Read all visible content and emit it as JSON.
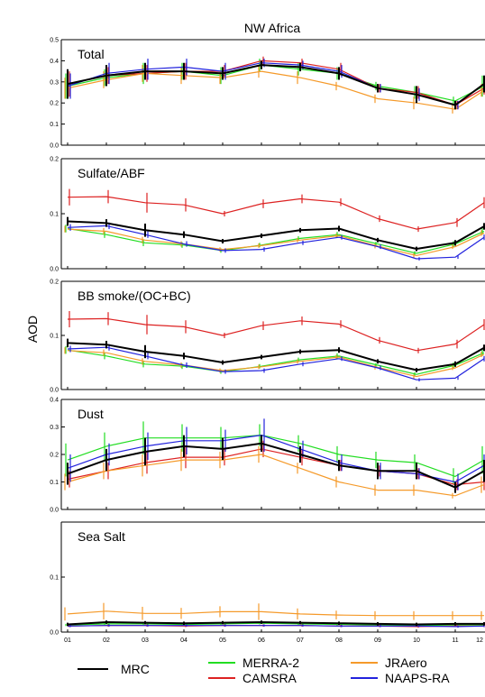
{
  "chart_data": {
    "type": "line",
    "title": "NW Africa",
    "ylabel": "AOD",
    "x": [
      "01",
      "02",
      "03",
      "04",
      "05",
      "06",
      "07",
      "08",
      "09",
      "10",
      "11",
      "12"
    ],
    "legend": [
      {
        "name": "MRC",
        "color": "#000000"
      },
      {
        "name": "MERRA-2",
        "color": "#22dd22"
      },
      {
        "name": "CAMSRA",
        "color": "#dd2222"
      },
      {
        "name": "JRAero",
        "color": "#f59a2a"
      },
      {
        "name": "NAAPS-RA",
        "color": "#2222dd"
      }
    ],
    "panels": [
      {
        "label": "Total",
        "ylim": [
          0,
          0.5
        ],
        "yticks": [
          0.0,
          0.1,
          0.2,
          0.3,
          0.4,
          0.5
        ],
        "series": [
          {
            "name": "MRC",
            "values": [
              0.29,
              0.33,
              0.35,
              0.35,
              0.34,
              0.38,
              0.37,
              0.34,
              0.27,
              0.24,
              0.19,
              0.29
            ],
            "errors": [
              0.07,
              0.05,
              0.04,
              0.04,
              0.03,
              0.02,
              0.02,
              0.03,
              0.02,
              0.04,
              0.02,
              0.04
            ]
          },
          {
            "name": "MERRA-2",
            "values": [
              0.28,
              0.32,
              0.34,
              0.35,
              0.33,
              0.38,
              0.36,
              0.34,
              0.28,
              0.25,
              0.21,
              0.28
            ],
            "errors": [
              0.06,
              0.04,
              0.05,
              0.04,
              0.04,
              0.03,
              0.03,
              0.03,
              0.02,
              0.03,
              0.02,
              0.05
            ]
          },
          {
            "name": "CAMSRA",
            "values": [
              0.29,
              0.33,
              0.34,
              0.35,
              0.35,
              0.4,
              0.39,
              0.36,
              0.27,
              0.25,
              0.19,
              0.27
            ],
            "errors": [
              0.06,
              0.04,
              0.04,
              0.04,
              0.03,
              0.02,
              0.02,
              0.03,
              0.02,
              0.03,
              0.02,
              0.03
            ]
          },
          {
            "name": "JRAero",
            "values": [
              0.27,
              0.31,
              0.34,
              0.33,
              0.32,
              0.35,
              0.32,
              0.28,
              0.22,
              0.2,
              0.17,
              0.26
            ],
            "errors": [
              0.05,
              0.04,
              0.04,
              0.04,
              0.03,
              0.03,
              0.03,
              0.02,
              0.02,
              0.03,
              0.02,
              0.03
            ]
          },
          {
            "name": "NAAPS-RA",
            "values": [
              0.28,
              0.34,
              0.36,
              0.37,
              0.35,
              0.39,
              0.38,
              0.35,
              0.27,
              0.24,
              0.19,
              0.29
            ],
            "errors": [
              0.06,
              0.05,
              0.05,
              0.04,
              0.04,
              0.02,
              0.02,
              0.03,
              0.02,
              0.03,
              0.02,
              0.04
            ]
          }
        ]
      },
      {
        "label": "Sulfate/ABF",
        "ylim": [
          0,
          0.2
        ],
        "yticks": [
          0.0,
          0.1,
          0.2
        ],
        "series": [
          {
            "name": "MRC",
            "values": [
              0.086,
              0.083,
              0.07,
              0.062,
              0.05,
              0.06,
              0.07,
              0.073,
              0.052,
              0.036,
              0.047,
              0.077
            ],
            "errors": [
              0.008,
              0.007,
              0.012,
              0.006,
              0.004,
              0.004,
              0.004,
              0.005,
              0.004,
              0.004,
              0.005,
              0.006
            ]
          },
          {
            "name": "MERRA-2",
            "values": [
              0.073,
              0.062,
              0.047,
              0.043,
              0.033,
              0.043,
              0.055,
              0.062,
              0.045,
              0.028,
              0.045,
              0.068
            ],
            "errors": [
              0.007,
              0.006,
              0.006,
              0.005,
              0.004,
              0.004,
              0.004,
              0.005,
              0.004,
              0.004,
              0.005,
              0.006
            ]
          },
          {
            "name": "CAMSRA",
            "values": [
              0.13,
              0.131,
              0.12,
              0.116,
              0.1,
              0.118,
              0.127,
              0.121,
              0.091,
              0.072,
              0.084,
              0.12
            ],
            "errors": [
              0.015,
              0.012,
              0.018,
              0.012,
              0.005,
              0.008,
              0.008,
              0.007,
              0.006,
              0.005,
              0.008,
              0.01
            ]
          },
          {
            "name": "JRAero",
            "values": [
              0.072,
              0.068,
              0.052,
              0.045,
              0.035,
              0.042,
              0.052,
              0.06,
              0.041,
              0.024,
              0.04,
              0.065
            ],
            "errors": [
              0.006,
              0.006,
              0.006,
              0.005,
              0.004,
              0.004,
              0.004,
              0.004,
              0.004,
              0.004,
              0.004,
              0.005
            ]
          },
          {
            "name": "NAAPS-RA",
            "values": [
              0.075,
              0.078,
              0.062,
              0.045,
              0.033,
              0.035,
              0.047,
              0.057,
              0.04,
              0.018,
              0.021,
              0.057
            ],
            "errors": [
              0.006,
              0.006,
              0.006,
              0.005,
              0.004,
              0.004,
              0.004,
              0.004,
              0.004,
              0.003,
              0.003,
              0.005
            ]
          }
        ]
      },
      {
        "label": "BB smoke/(OC+BC)",
        "ylim": [
          0,
          0.2
        ],
        "yticks": [
          0.0,
          0.1,
          0.2
        ],
        "series": [
          {
            "name": "MRC",
            "values": [
              0.086,
              0.083,
              0.07,
              0.062,
              0.05,
              0.06,
              0.07,
              0.073,
              0.052,
              0.036,
              0.047,
              0.077
            ],
            "errors": [
              0.008,
              0.007,
              0.012,
              0.006,
              0.004,
              0.004,
              0.004,
              0.005,
              0.004,
              0.004,
              0.005,
              0.006
            ]
          },
          {
            "name": "MERRA-2",
            "values": [
              0.073,
              0.062,
              0.047,
              0.043,
              0.033,
              0.043,
              0.055,
              0.062,
              0.045,
              0.028,
              0.045,
              0.068
            ],
            "errors": [
              0.007,
              0.006,
              0.006,
              0.005,
              0.004,
              0.004,
              0.004,
              0.005,
              0.004,
              0.004,
              0.005,
              0.006
            ]
          },
          {
            "name": "CAMSRA",
            "values": [
              0.13,
              0.131,
              0.12,
              0.116,
              0.1,
              0.118,
              0.127,
              0.121,
              0.091,
              0.072,
              0.084,
              0.12
            ],
            "errors": [
              0.015,
              0.012,
              0.018,
              0.012,
              0.005,
              0.008,
              0.008,
              0.007,
              0.006,
              0.005,
              0.008,
              0.01
            ]
          },
          {
            "name": "JRAero",
            "values": [
              0.072,
              0.068,
              0.052,
              0.045,
              0.035,
              0.042,
              0.052,
              0.06,
              0.041,
              0.024,
              0.04,
              0.065
            ],
            "errors": [
              0.006,
              0.006,
              0.006,
              0.005,
              0.004,
              0.004,
              0.004,
              0.004,
              0.004,
              0.004,
              0.004,
              0.005
            ]
          },
          {
            "name": "NAAPS-RA",
            "values": [
              0.075,
              0.078,
              0.062,
              0.045,
              0.033,
              0.035,
              0.047,
              0.057,
              0.04,
              0.018,
              0.021,
              0.057
            ],
            "errors": [
              0.006,
              0.006,
              0.006,
              0.005,
              0.004,
              0.004,
              0.004,
              0.004,
              0.004,
              0.003,
              0.003,
              0.005
            ]
          }
        ]
      },
      {
        "label": "Dust",
        "ylim": [
          0,
          0.4
        ],
        "yticks": [
          0.0,
          0.1,
          0.2,
          0.3,
          0.4
        ],
        "series": [
          {
            "name": "MRC",
            "values": [
              0.13,
              0.18,
              0.21,
              0.23,
              0.22,
              0.24,
              0.2,
              0.16,
              0.14,
              0.14,
              0.08,
              0.14
            ],
            "errors": [
              0.04,
              0.04,
              0.05,
              0.04,
              0.04,
              0.03,
              0.03,
              0.02,
              0.03,
              0.03,
              0.02,
              0.04
            ]
          },
          {
            "name": "MERRA-2",
            "values": [
              0.18,
              0.23,
              0.26,
              0.26,
              0.26,
              0.27,
              0.24,
              0.2,
              0.18,
              0.17,
              0.12,
              0.18
            ],
            "errors": [
              0.06,
              0.05,
              0.06,
              0.05,
              0.04,
              0.04,
              0.03,
              0.03,
              0.03,
              0.03,
              0.03,
              0.05
            ]
          },
          {
            "name": "CAMSRA",
            "values": [
              0.11,
              0.14,
              0.17,
              0.19,
              0.19,
              0.22,
              0.19,
              0.16,
              0.14,
              0.13,
              0.09,
              0.1
            ],
            "errors": [
              0.03,
              0.03,
              0.04,
              0.04,
              0.03,
              0.03,
              0.03,
              0.02,
              0.02,
              0.02,
              0.02,
              0.03
            ]
          },
          {
            "name": "JRAero",
            "values": [
              0.1,
              0.14,
              0.16,
              0.18,
              0.18,
              0.2,
              0.15,
              0.1,
              0.07,
              0.07,
              0.05,
              0.09
            ],
            "errors": [
              0.03,
              0.03,
              0.04,
              0.04,
              0.03,
              0.03,
              0.02,
              0.02,
              0.02,
              0.02,
              0.01,
              0.03
            ]
          },
          {
            "name": "NAAPS-RA",
            "values": [
              0.15,
              0.2,
              0.23,
              0.25,
              0.25,
              0.27,
              0.22,
              0.17,
              0.14,
              0.13,
              0.1,
              0.16
            ],
            "errors": [
              0.05,
              0.04,
              0.05,
              0.05,
              0.04,
              0.06,
              0.03,
              0.03,
              0.03,
              0.02,
              0.03,
              0.04
            ]
          }
        ]
      },
      {
        "label": "Sea Salt",
        "ylim": [
          0,
          0.2
        ],
        "yticks": [
          0.0,
          0.1
        ],
        "series": [
          {
            "name": "MRC",
            "values": [
              0.014,
              0.018,
              0.017,
              0.016,
              0.017,
              0.018,
              0.017,
              0.016,
              0.015,
              0.014,
              0.015,
              0.015
            ],
            "errors": [
              0.003,
              0.003,
              0.003,
              0.003,
              0.003,
              0.003,
              0.003,
              0.003,
              0.003,
              0.003,
              0.003,
              0.003
            ]
          },
          {
            "name": "MERRA-2",
            "values": [
              0.013,
              0.015,
              0.015,
              0.014,
              0.015,
              0.016,
              0.015,
              0.014,
              0.013,
              0.012,
              0.013,
              0.013
            ],
            "errors": [
              0.002,
              0.002,
              0.002,
              0.002,
              0.002,
              0.002,
              0.002,
              0.002,
              0.002,
              0.002,
              0.002,
              0.002
            ]
          },
          {
            "name": "CAMSRA",
            "values": [
              0.011,
              0.012,
              0.012,
              0.011,
              0.012,
              0.012,
              0.012,
              0.011,
              0.011,
              0.01,
              0.011,
              0.011
            ],
            "errors": [
              0.002,
              0.002,
              0.002,
              0.002,
              0.002,
              0.002,
              0.002,
              0.002,
              0.002,
              0.002,
              0.002,
              0.002
            ]
          },
          {
            "name": "JRAero",
            "values": [
              0.033,
              0.038,
              0.034,
              0.034,
              0.037,
              0.037,
              0.033,
              0.031,
              0.03,
              0.03,
              0.03,
              0.03
            ],
            "errors": [
              0.012,
              0.015,
              0.012,
              0.01,
              0.01,
              0.015,
              0.01,
              0.008,
              0.008,
              0.008,
              0.008,
              0.008
            ]
          },
          {
            "name": "NAAPS-RA",
            "values": [
              0.011,
              0.012,
              0.012,
              0.012,
              0.012,
              0.012,
              0.012,
              0.011,
              0.011,
              0.011,
              0.01,
              0.011
            ],
            "errors": [
              0.002,
              0.002,
              0.002,
              0.002,
              0.002,
              0.002,
              0.002,
              0.002,
              0.002,
              0.002,
              0.002,
              0.002
            ]
          }
        ]
      }
    ]
  }
}
